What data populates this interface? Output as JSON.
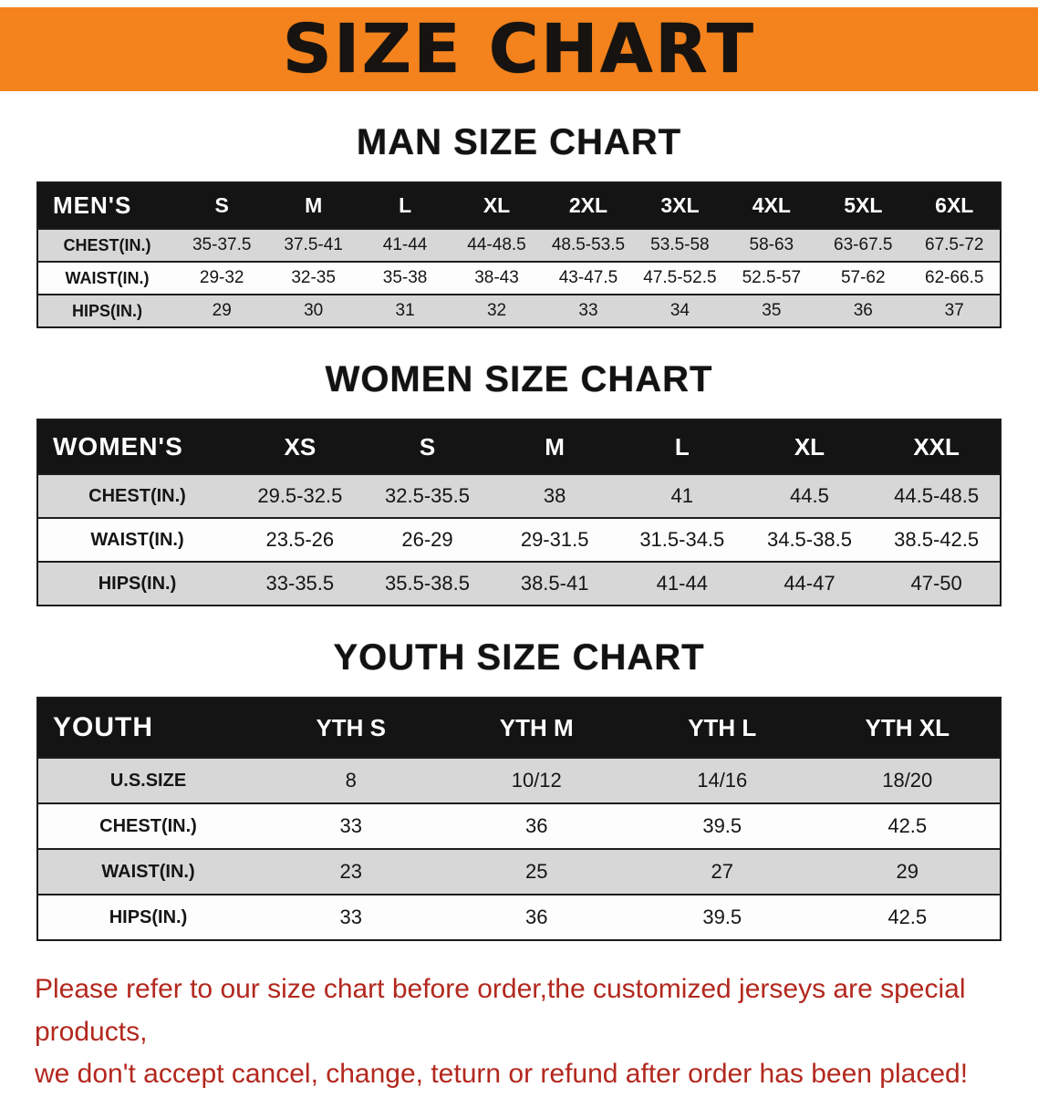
{
  "banner": {
    "title": "SIZE CHART"
  },
  "chart_data": [
    {
      "type": "table",
      "title": "MAN SIZE CHART",
      "header": [
        "MEN'S",
        "S",
        "M",
        "L",
        "XL",
        "2XL",
        "3XL",
        "4XL",
        "5XL",
        "6XL"
      ],
      "rows": [
        {
          "label": "CHEST(IN.)",
          "values": [
            "35-37.5",
            "37.5-41",
            "41-44",
            "44-48.5",
            "48.5-53.5",
            "53.5-58",
            "58-63",
            "63-67.5",
            "67.5-72"
          ]
        },
        {
          "label": "WAIST(IN.)",
          "values": [
            "29-32",
            "32-35",
            "35-38",
            "38-43",
            "43-47.5",
            "47.5-52.5",
            "52.5-57",
            "57-62",
            "62-66.5"
          ]
        },
        {
          "label": "HIPS(IN.)",
          "values": [
            "29",
            "30",
            "31",
            "32",
            "33",
            "34",
            "35",
            "36",
            "37"
          ]
        }
      ]
    },
    {
      "type": "table",
      "title": "WOMEN SIZE CHART",
      "header": [
        "WOMEN'S",
        "XS",
        "S",
        "M",
        "L",
        "XL",
        "XXL"
      ],
      "rows": [
        {
          "label": "CHEST(IN.)",
          "values": [
            "29.5-32.5",
            "32.5-35.5",
            "38",
            "41",
            "44.5",
            "44.5-48.5"
          ]
        },
        {
          "label": "WAIST(IN.)",
          "values": [
            "23.5-26",
            "26-29",
            "29-31.5",
            "31.5-34.5",
            "34.5-38.5",
            "38.5-42.5"
          ]
        },
        {
          "label": "HIPS(IN.)",
          "values": [
            "33-35.5",
            "35.5-38.5",
            "38.5-41",
            "41-44",
            "44-47",
            "47-50"
          ]
        }
      ]
    },
    {
      "type": "table",
      "title": "YOUTH SIZE CHART",
      "header": [
        "YOUTH",
        "YTH S",
        "YTH M",
        "YTH L",
        "YTH XL"
      ],
      "rows": [
        {
          "label": "U.S.SIZE",
          "values": [
            "8",
            "10/12",
            "14/16",
            "18/20"
          ]
        },
        {
          "label": "CHEST(IN.)",
          "values": [
            "33",
            "36",
            "39.5",
            "42.5"
          ]
        },
        {
          "label": "WAIST(IN.)",
          "values": [
            "23",
            "25",
            "27",
            "29"
          ]
        },
        {
          "label": "HIPS(IN.)",
          "values": [
            "33",
            "36",
            "39.5",
            "42.5"
          ]
        }
      ]
    }
  ],
  "footer": {
    "line1": "Please refer to our size chart before order,the customized jerseys are special products,",
    "line2": "we don't accept cancel, change, teturn or refund after order has been placed!"
  },
  "colors": {
    "banner_bg": "#f5831d",
    "table_header_bg": "#141414",
    "row_stripe": "#d7d7d7",
    "note_text": "#b3281e"
  }
}
